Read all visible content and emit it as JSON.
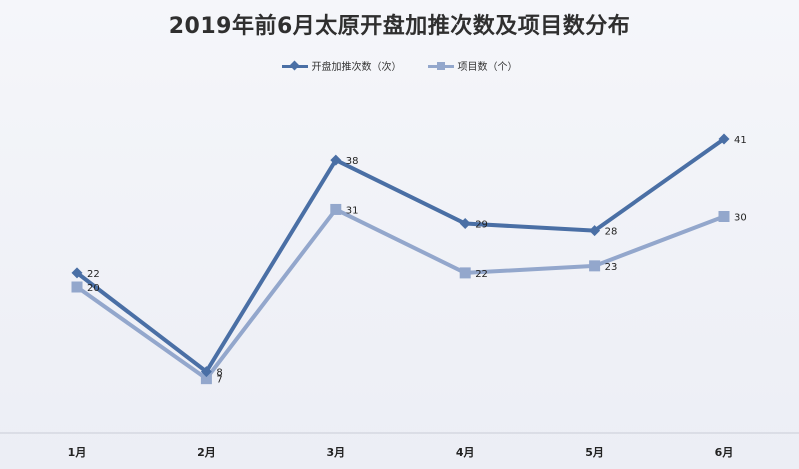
{
  "chart_data": {
    "type": "line",
    "title": "2019年前6月太原开盘加推次数及项目数分布",
    "categories": [
      "1月",
      "2月",
      "3月",
      "4月",
      "5月",
      "6月"
    ],
    "series": [
      {
        "name": "开盘加推次数（次）",
        "marker": "diamond",
        "color": "#4a6fa5",
        "values": [
          22,
          8,
          38,
          29,
          28,
          41
        ]
      },
      {
        "name": "项目数（个）",
        "marker": "square",
        "color": "#93a7cc",
        "values": [
          20,
          7,
          31,
          22,
          23,
          30
        ]
      }
    ],
    "ylim": [
      0,
      48
    ],
    "grid": false,
    "legend": "top-center",
    "xlabel": "",
    "ylabel": ""
  }
}
